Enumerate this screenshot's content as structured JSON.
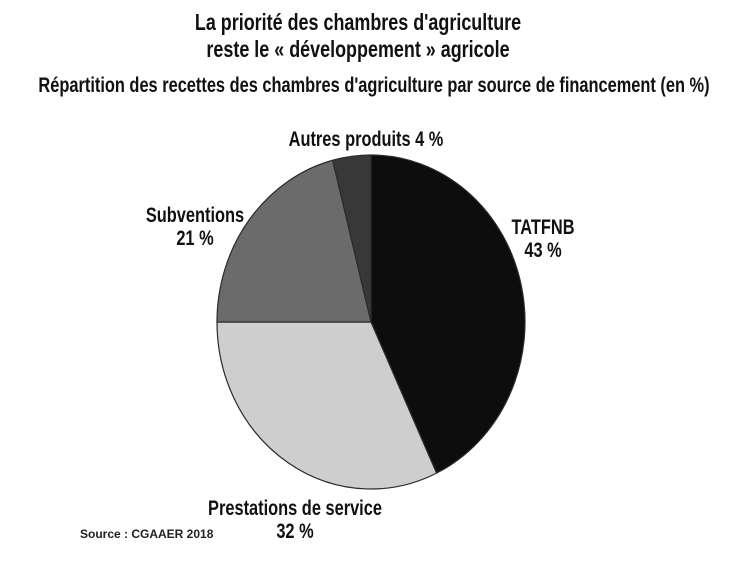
{
  "title": {
    "line1": "La priorité des chambres d'agriculture",
    "line2": "reste le « développement » agricole"
  },
  "subtitle": "Répartition des recettes des chambres d'agriculture par source de financement (en %)",
  "source": "Source : CGAAER 2018",
  "colors": {
    "background": "#ffffff",
    "text": "#111111",
    "slice_outline": "#2b2b2b"
  },
  "chart_data": {
    "type": "pie",
    "title": "Répartition des recettes des chambres d'agriculture par source de financement (en %)",
    "unit": "%",
    "start_angle_deg": 0,
    "direction": "clockwise",
    "legend_position": "labels around pie",
    "slices": [
      {
        "label": "TATFNB",
        "value": 43,
        "pct_label": "43 %",
        "color": "#0d0d0d"
      },
      {
        "label": "Prestations de service",
        "value": 32,
        "pct_label": "32 %",
        "color": "#cecece"
      },
      {
        "label": "Subventions",
        "value": 21,
        "pct_label": "21 %",
        "color": "#6b6b6b"
      },
      {
        "label": "Autres produits",
        "value": 4,
        "pct_label": "4 %",
        "color": "#383838"
      }
    ]
  }
}
